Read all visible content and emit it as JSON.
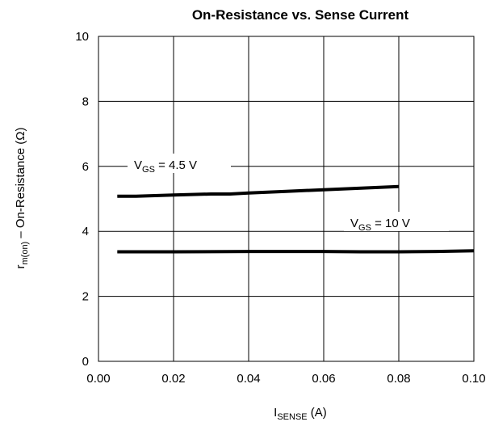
{
  "chart_data": {
    "type": "line",
    "title": "On-Resistance vs. Sense Current",
    "xlabel": {
      "main": "I",
      "sub": "SENSE",
      "unit": " (A)"
    },
    "ylabel": {
      "main": "r",
      "sub": "m(on)",
      "rest": " – On-Resistance (Ω)"
    },
    "xlim": [
      0,
      0.1
    ],
    "ylim": [
      0,
      10
    ],
    "x_ticks": [
      "0.00",
      "0.02",
      "0.04",
      "0.06",
      "0.08",
      "0.10"
    ],
    "y_ticks": [
      "0",
      "2",
      "4",
      "6",
      "8",
      "10"
    ],
    "grid": true,
    "series": [
      {
        "label": {
          "main": "V",
          "sub": "GS",
          "rest": " = 4.5 V"
        },
        "x": [
          0.005,
          0.01,
          0.02,
          0.03,
          0.035,
          0.04,
          0.05,
          0.06,
          0.07,
          0.08
        ],
        "y": [
          5.08,
          5.08,
          5.12,
          5.15,
          5.15,
          5.18,
          5.23,
          5.28,
          5.33,
          5.38
        ]
      },
      {
        "label": {
          "main": "V",
          "sub": "GS",
          "rest": " = 10 V"
        },
        "x": [
          0.005,
          0.02,
          0.04,
          0.06,
          0.07,
          0.08,
          0.09,
          0.1
        ],
        "y": [
          3.37,
          3.37,
          3.38,
          3.38,
          3.37,
          3.37,
          3.38,
          3.4
        ]
      }
    ]
  }
}
